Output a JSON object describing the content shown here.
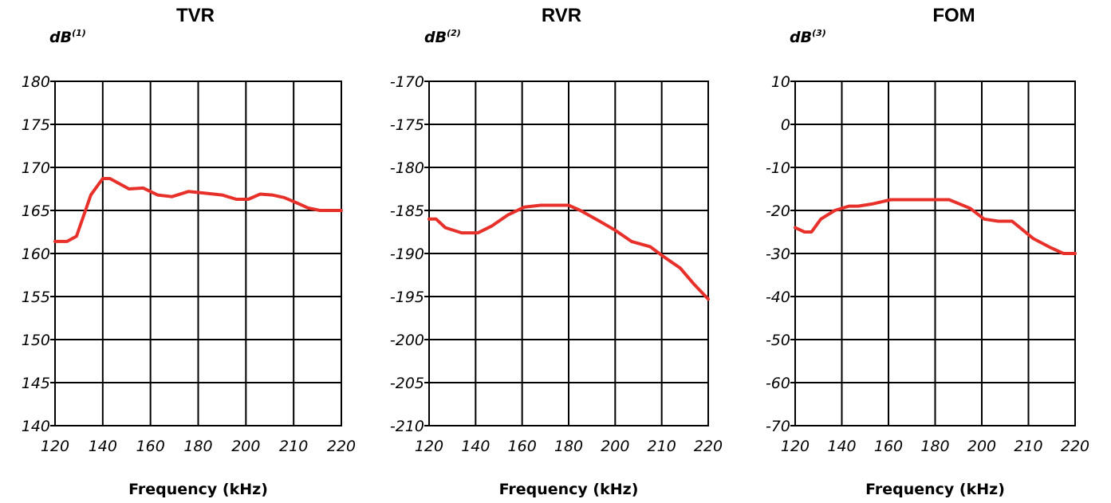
{
  "colors": {
    "series": "#e8302a",
    "grid": "#000000",
    "background": "#ffffff"
  },
  "chart_data": [
    {
      "type": "line",
      "title": "TVR",
      "ylabel": "dB",
      "ylabel_sup": "(1)",
      "xlabel": "Frequency (kHz)",
      "xtick_labels": [
        "120",
        "140",
        "160",
        "180",
        "200",
        "210",
        "220"
      ],
      "ytick_labels": [
        "180",
        "175",
        "170",
        "165",
        "160",
        "155",
        "150",
        "145",
        "140"
      ],
      "ylim": [
        140,
        180
      ],
      "grid": true,
      "series": [
        {
          "x": [
            120,
            125,
            129,
            135,
            140,
            143,
            147,
            151,
            157,
            163,
            169,
            176,
            183,
            190,
            196,
            201,
            206,
            211,
            216,
            222,
            226,
            231,
            236,
            240
          ],
          "values": [
            161.4,
            161.4,
            162.0,
            166.8,
            168.7,
            168.7,
            168.1,
            167.5,
            167.6,
            166.8,
            166.6,
            167.2,
            167.0,
            166.8,
            166.3,
            166.3,
            166.9,
            166.8,
            166.5,
            165.8,
            165.3,
            165.0,
            165.0,
            165.0
          ]
        }
      ]
    },
    {
      "type": "line",
      "title": "RVR",
      "ylabel": "dB",
      "ylabel_sup": "(2)",
      "xlabel": "Frequency (kHz)",
      "xtick_labels": [
        "120",
        "140",
        "160",
        "180",
        "200",
        "210",
        "220"
      ],
      "ytick_labels": [
        "-170",
        "-175",
        "-180",
        "-185",
        "-190",
        "-195",
        "-200",
        "-205",
        "-210"
      ],
      "ylim": [
        -210,
        -170
      ],
      "grid": true,
      "series": [
        {
          "x": [
            120,
            123,
            127,
            134,
            141,
            147,
            154,
            161,
            168,
            174,
            180,
            185,
            193,
            200,
            207,
            215,
            221,
            228,
            234,
            240
          ],
          "values": [
            -186.0,
            -186.0,
            -187.0,
            -187.6,
            -187.6,
            -186.8,
            -185.5,
            -184.6,
            -184.4,
            -184.4,
            -184.4,
            -185.0,
            -186.2,
            -187.3,
            -188.6,
            -189.2,
            -190.4,
            -191.7,
            -193.6,
            -195.3
          ]
        }
      ]
    },
    {
      "type": "line",
      "title": "FOM",
      "ylabel": "dB",
      "ylabel_sup": "(3)",
      "xlabel": "Frequency (kHz)",
      "xtick_labels": [
        "120",
        "140",
        "160",
        "180",
        "200",
        "210",
        "220"
      ],
      "ytick_labels": [
        "10",
        "0",
        "-10",
        "-20",
        "-30",
        "-40",
        "-50",
        "-60",
        "-70"
      ],
      "ylim": [
        -70,
        10
      ],
      "grid": true,
      "series": [
        {
          "x": [
            120,
            124,
            127,
            131,
            137,
            143,
            147,
            153,
            161,
            171,
            180,
            186,
            195,
            201,
            207,
            213,
            222,
            229,
            235,
            240
          ],
          "values": [
            -24.0,
            -25.0,
            -25.0,
            -22.0,
            -20.0,
            -19.0,
            -19.0,
            -18.5,
            -17.5,
            -17.5,
            -17.5,
            -17.5,
            -19.5,
            -22.0,
            -22.5,
            -22.5,
            -26.5,
            -28.5,
            -30.0,
            -30.0
          ]
        }
      ]
    }
  ]
}
